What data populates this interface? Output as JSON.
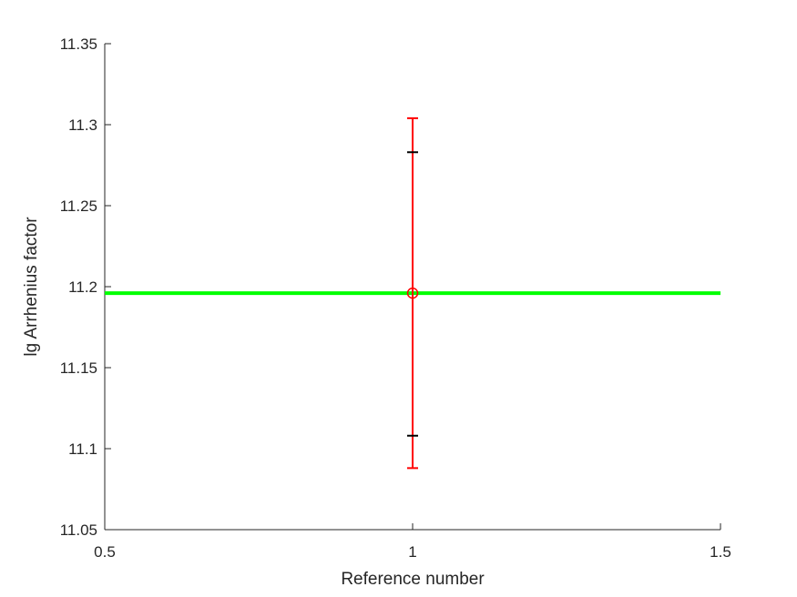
{
  "chart_data": {
    "type": "scatter",
    "title": "",
    "xlabel": "Reference number",
    "ylabel": "lg Arrhenius factor",
    "xlim": [
      0.5,
      1.5
    ],
    "ylim": [
      11.05,
      11.35
    ],
    "xticks": [
      0.5,
      1,
      1.5
    ],
    "xtick_labels": [
      "0.5",
      "1",
      "1.5"
    ],
    "yticks": [
      11.05,
      11.1,
      11.15,
      11.2,
      11.25,
      11.3,
      11.35
    ],
    "ytick_labels": [
      "11.05",
      "11.1",
      "11.15",
      "11.2",
      "11.25",
      "11.3",
      "11.35"
    ],
    "grid": false,
    "points": [
      {
        "x": 1,
        "y": 11.196,
        "marker": "circle",
        "color": "#ff0000",
        "error_outer": [
          11.088,
          11.304
        ],
        "error_inner": [
          11.108,
          11.283
        ],
        "error_outer_color": "#ff0000",
        "error_inner_color": "#000000"
      }
    ],
    "reference_line": {
      "y": 11.196,
      "color": "#00ff00"
    }
  },
  "colors": {
    "axis": "#262626",
    "background": "#ffffff"
  }
}
